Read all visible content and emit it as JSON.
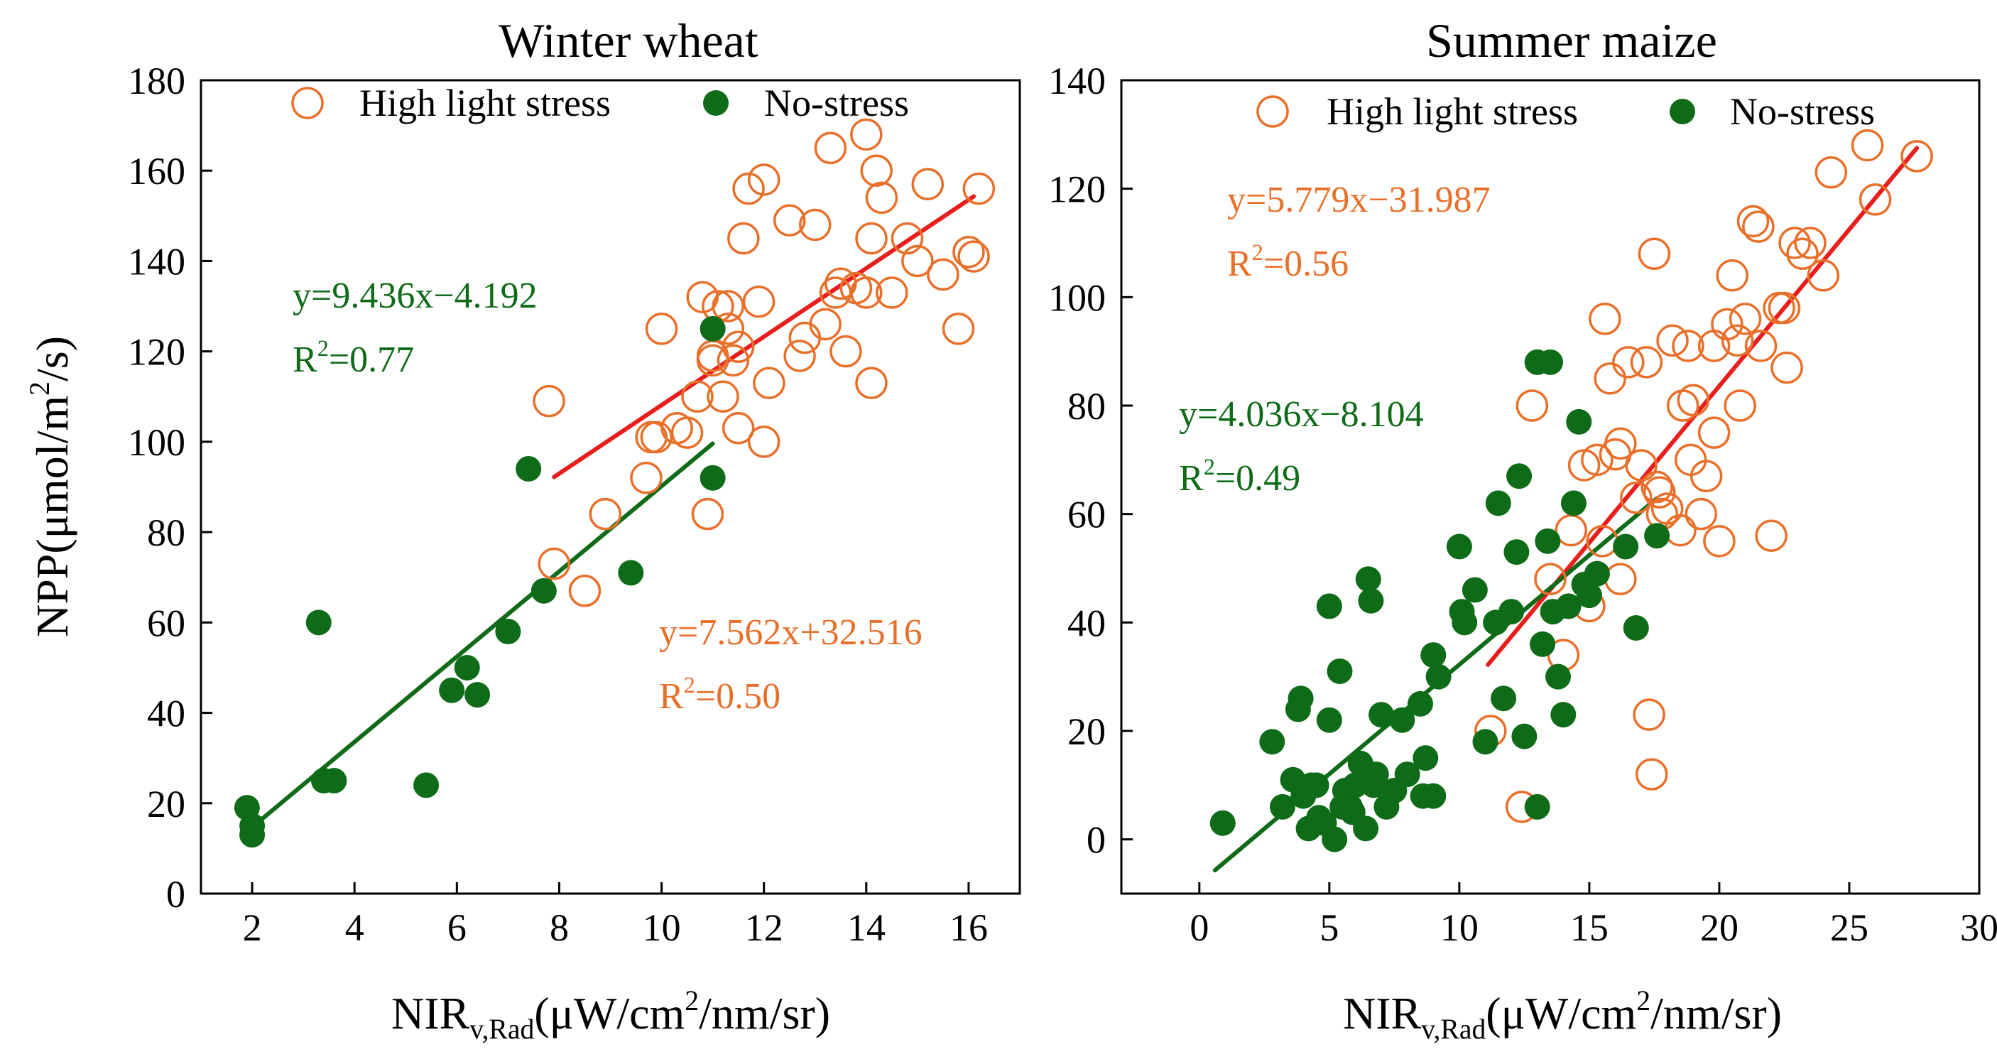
{
  "colors": {
    "high": "#E8702A",
    "no": "#0E6B18",
    "high_fit": "#E81E1E",
    "no_fit": "#0E6B18",
    "frame": "#000000"
  },
  "chart_data": [
    {
      "type": "scatter",
      "title": "Winter wheat",
      "xlabel": {
        "main": "NIR",
        "sub": "v,Rad",
        "unit_pre": "(μW/cm",
        "sup": "2",
        "unit_post": "/nm/sr)"
      },
      "ylabel": {
        "main": "NPP(μmol/m",
        "sup": "2",
        "post": "/s)"
      },
      "xlim": [
        1,
        17
      ],
      "ylim": [
        0,
        180
      ],
      "xticks": [
        2,
        4,
        6,
        8,
        10,
        12,
        14,
        16
      ],
      "yticks": [
        0,
        20,
        40,
        60,
        80,
        100,
        120,
        140,
        160,
        180
      ],
      "legend": {
        "high": "High light stress",
        "no": "No-stress"
      },
      "series": [
        {
          "name": "High light stress",
          "style": "open-circle",
          "color_key": "high",
          "x": [
            7.9,
            7.8,
            8.5,
            8.9,
            9.7,
            9.9,
            10.3,
            10.5,
            10.7,
            10.9,
            11.0,
            11.1,
            11.2,
            11.3,
            11.4,
            11.5,
            11.6,
            11.7,
            11.9,
            12.0,
            12.1,
            12.5,
            12.7,
            13.0,
            13.2,
            13.3,
            13.4,
            13.6,
            13.8,
            14.0,
            14.1,
            14.2,
            14.3,
            14.5,
            14.8,
            15.0,
            15.2,
            15.5,
            15.8,
            16.0,
            16.1,
            16.2,
            10.0,
            11.0,
            12.0,
            9.8,
            11.5,
            12.8,
            13.5,
            14.0,
            10.8,
            11.3,
            14.1
          ],
          "y": [
            73,
            109,
            67,
            84,
            92,
            101,
            103,
            102,
            110,
            84,
            119,
            130,
            110,
            125,
            118,
            103,
            145,
            156,
            131,
            100,
            113,
            149,
            119,
            148,
            126,
            165,
            133,
            120,
            134,
            168,
            145,
            160,
            154,
            133,
            145,
            140,
            157,
            137,
            125,
            142,
            141,
            156,
            125,
            118,
            158,
            101,
            121,
            123,
            135,
            133,
            132,
            130,
            113
          ]
        },
        {
          "name": "No-stress",
          "style": "filled-circle",
          "color_key": "no",
          "x": [
            1.9,
            2.0,
            2.0,
            3.3,
            3.4,
            3.6,
            5.4,
            5.9,
            6.2,
            6.4,
            7.0,
            7.4,
            7.7,
            9.4,
            11.0,
            11.0
          ],
          "y": [
            19,
            13,
            15,
            60,
            25,
            25,
            24,
            45,
            50,
            44,
            58,
            94,
            67,
            71,
            92,
            125
          ]
        },
        {
          "name": "fit-high",
          "style": "line",
          "color_key": "high_fit",
          "x": [
            7.9,
            16.1
          ],
          "y": [
            92.2,
            154.3
          ]
        },
        {
          "name": "fit-no",
          "style": "line",
          "color_key": "no_fit",
          "x": [
            2.0,
            11.0
          ],
          "y": [
            14.7,
            99.6
          ]
        }
      ],
      "equations": [
        {
          "line1": "y=9.436x−4.192",
          "r2_pre": "R",
          "r2_sup": "2",
          "r2_post": "=0.77",
          "color_key": "no"
        },
        {
          "line1": "y=7.562x+32.516",
          "r2_pre": "R",
          "r2_sup": "2",
          "r2_post": "=0.50",
          "color_key": "high"
        }
      ]
    },
    {
      "type": "scatter",
      "title": "Summer maize",
      "xlabel": {
        "main": "NIR",
        "sub": "v,Rad",
        "unit_pre": "(μW/cm",
        "sup": "2",
        "unit_post": "/nm/sr)"
      },
      "xlim": [
        -3,
        30
      ],
      "ylim": [
        -10,
        140
      ],
      "xticks": [
        0,
        5,
        10,
        15,
        20,
        25,
        30
      ],
      "yticks": [
        0,
        20,
        40,
        60,
        80,
        100,
        120,
        140
      ],
      "legend": {
        "high": "High light stress",
        "no": "No-stress"
      },
      "series": [
        {
          "name": "High light stress",
          "style": "open-circle",
          "color_key": "high",
          "x": [
            11.2,
            12.4,
            12.8,
            13.5,
            14.0,
            14.3,
            14.8,
            15.0,
            15.3,
            15.6,
            15.8,
            16.0,
            16.2,
            16.5,
            16.8,
            17.0,
            17.3,
            17.5,
            17.7,
            18.0,
            18.2,
            18.5,
            18.8,
            19.0,
            19.3,
            19.5,
            19.8,
            20.0,
            20.3,
            20.5,
            20.8,
            21.0,
            21.3,
            21.6,
            22.0,
            22.3,
            22.6,
            22.9,
            23.2,
            23.5,
            24.0,
            24.3,
            25.7,
            26.0,
            27.6,
            17.4,
            17.6,
            18.6,
            19.8,
            20.7,
            21.5,
            22.5,
            16.2,
            17.2,
            17.8,
            18.9,
            15.5
          ],
          "y": [
            20,
            6,
            80,
            48,
            34,
            57,
            69,
            43,
            70,
            96,
            85,
            71,
            48,
            88,
            63,
            69,
            23,
            108,
            64,
            61,
            92,
            57,
            91,
            81,
            60,
            67,
            91,
            55,
            95,
            104,
            80,
            96,
            114,
            91,
            56,
            98,
            87,
            110,
            108,
            110,
            104,
            123,
            128,
            118,
            126,
            12,
            65,
            80,
            75,
            92,
            113,
            98,
            73,
            88,
            60,
            70,
            55
          ]
        },
        {
          "name": "No-stress",
          "style": "filled-circle",
          "color_key": "no",
          "x": [
            0.9,
            2.8,
            3.2,
            3.6,
            3.8,
            4.0,
            4.2,
            4.5,
            4.8,
            5.0,
            5.0,
            5.2,
            5.4,
            5.6,
            5.8,
            6.0,
            6.2,
            6.4,
            6.5,
            6.6,
            6.8,
            7.0,
            7.2,
            7.5,
            8.0,
            8.5,
            8.7,
            9.0,
            9.2,
            10.0,
            10.2,
            10.6,
            11.0,
            11.4,
            11.7,
            12.0,
            12.2,
            12.5,
            13.0,
            13.2,
            13.4,
            13.6,
            13.8,
            14.0,
            14.2,
            14.4,
            14.6,
            14.8,
            15.0,
            15.3,
            16.4,
            16.8,
            17.6,
            3.9,
            4.6,
            5.5,
            6.7,
            8.6,
            10.1,
            12.3,
            13.0,
            13.5,
            11.5,
            9.0,
            4.3,
            7.8,
            5.9
          ],
          "y": [
            3,
            18,
            6,
            11,
            24,
            8,
            2,
            10,
            3,
            22,
            43,
            0,
            31,
            9,
            6,
            10,
            14,
            2,
            48,
            44,
            12,
            23,
            6,
            9,
            12,
            25,
            15,
            8,
            30,
            54,
            40,
            46,
            18,
            40,
            26,
            42,
            53,
            19,
            6,
            36,
            55,
            42,
            30,
            23,
            43,
            62,
            77,
            47,
            45,
            49,
            54,
            39,
            56,
            26,
            4,
            6,
            10,
            8,
            42,
            67,
            88,
            88,
            62,
            34,
            10,
            22,
            5
          ]
        },
        {
          "name": "fit-high",
          "style": "line",
          "color_key": "high_fit",
          "x": [
            11.1,
            27.6
          ],
          "y": [
            32.2,
            127.5
          ]
        },
        {
          "name": "fit-no",
          "style": "line",
          "color_key": "no_fit",
          "x": [
            0.6,
            17.6
          ],
          "y": [
            -5.7,
            62.9
          ]
        }
      ],
      "equations": [
        {
          "line1": "y=5.779x−31.987",
          "r2_pre": "R",
          "r2_sup": "2",
          "r2_post": "=0.56",
          "color_key": "high"
        },
        {
          "line1": "y=4.036x−8.104",
          "r2_pre": "R",
          "r2_sup": "2",
          "r2_post": "=0.49",
          "color_key": "no"
        }
      ]
    }
  ]
}
